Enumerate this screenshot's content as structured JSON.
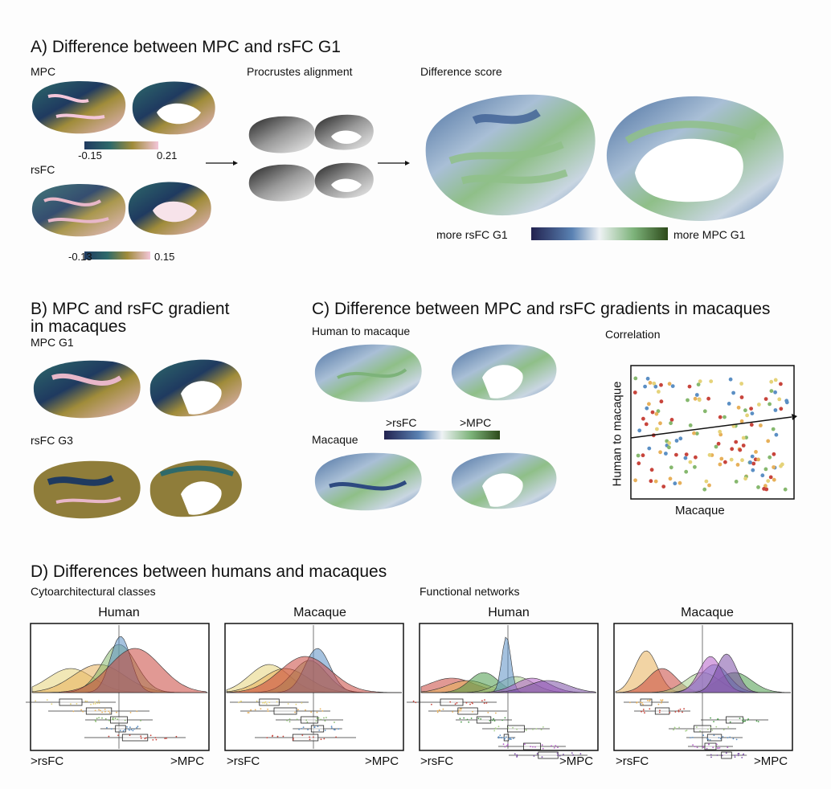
{
  "panelA": {
    "title": "A) Difference between MPC and rsFC G1",
    "mpc_label": "MPC",
    "mpc_min": "-0.15",
    "mpc_max": "0.21",
    "rsfc_label": "rsFC",
    "rsfc_min": "-0.13",
    "rsfc_max": "0.15",
    "procrustes_label": "Procrustes alignment",
    "difference_label": "Difference score",
    "diff_left": "more rsFC G1",
    "diff_right": "more MPC G1"
  },
  "panelB": {
    "title_line1": "B) MPC and rsFC gradient",
    "title_line2": "in macaques",
    "mpc_label": "MPC G1",
    "rsfc_label": "rsFC G3"
  },
  "panelC": {
    "title": "C) Difference between MPC and rsFC gradients in macaques",
    "h2m_label": "Human to macaque",
    "macaque_label": "Macaque",
    "cbar_left": ">rsFC",
    "cbar_right": ">MPC",
    "corr_label": "Correlation",
    "corr_xlabel": "Macaque",
    "corr_ylabel": "Human to macaque"
  },
  "panelD": {
    "title": "D) Differences between humans and macaques",
    "cyto_label": "Cytoarchitectural classes",
    "func_label": "Functional networks",
    "plots": [
      {
        "title": "Human",
        "left": ">rsFC",
        "right": ">MPC"
      },
      {
        "title": "Macaque",
        "left": ">rsFC",
        "right": ">MPC"
      },
      {
        "title": "Human",
        "left": ">rsFC",
        "right": ">MPC"
      },
      {
        "title": "Macaque",
        "left": ">rsFC",
        "right": ">MPC"
      }
    ]
  },
  "colors": {
    "mpc_cmap": [
      "#1f3a60",
      "#2e6a6a",
      "#a08c3a",
      "#f3c6d9"
    ],
    "diff_cmap": [
      "#2a2a5a",
      "#4a6fa0",
      "#e6eef3",
      "#7db37a",
      "#2d4a1a"
    ],
    "cyto": [
      "#5b8fc4",
      "#86b86e",
      "#e7b05a",
      "#e5d37a",
      "#c8453c"
    ],
    "networks": [
      "#7b4fa6",
      "#b55fc8",
      "#4a9a4a",
      "#a8d08a",
      "#5b8fc4",
      "#e7b05a",
      "#c8453c"
    ]
  }
}
